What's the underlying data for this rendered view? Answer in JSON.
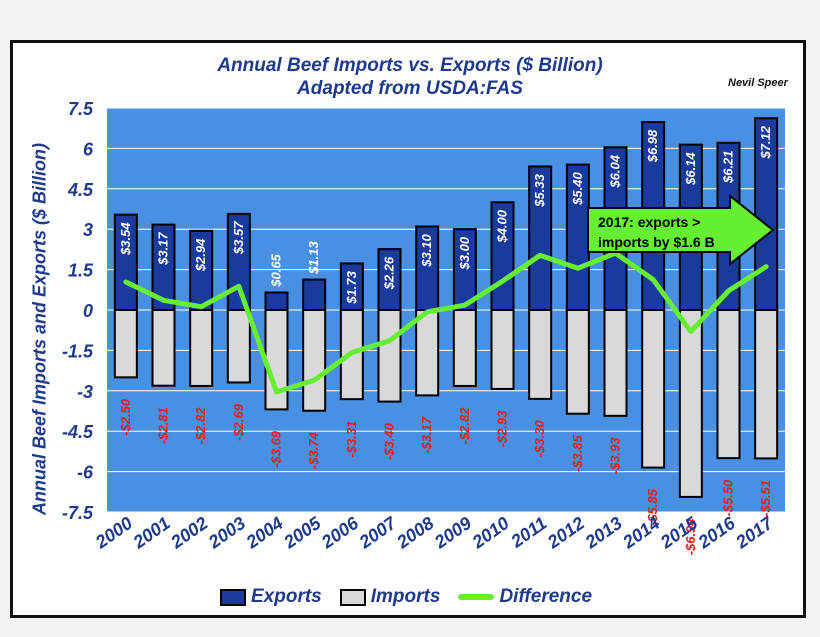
{
  "chart_data": {
    "type": "bar",
    "title": "Annual Beef Imports vs. Exports ($ Billion)",
    "subtitle": "Adapted from USDA:FAS",
    "credit": "Nevil Speer",
    "ylabel": "Annual Beef Imports and Exports ($ Billion)",
    "xlabel": "",
    "ylim": [
      -7.5,
      7.5
    ],
    "yticks": [
      7.5,
      6,
      4.5,
      3,
      1.5,
      0,
      -1.5,
      -3,
      -4.5,
      -6,
      -7.5
    ],
    "categories": [
      "2000",
      "2001",
      "2002",
      "2003",
      "2004",
      "2005",
      "2006",
      "2007",
      "2008",
      "2009",
      "2010",
      "2011",
      "2012",
      "2013",
      "2014",
      "2015",
      "2016",
      "2017"
    ],
    "series": [
      {
        "name": "Exports",
        "type": "bar",
        "color": "#1a3a9c",
        "values": [
          3.54,
          3.17,
          2.94,
          3.57,
          0.65,
          1.13,
          1.73,
          2.26,
          3.1,
          3.0,
          4.0,
          5.33,
          5.4,
          6.04,
          6.98,
          6.14,
          6.21,
          7.12
        ],
        "labels": [
          "$3.54",
          "$3.17",
          "$2.94",
          "$3.57",
          "$0.65",
          "$1.13",
          "$1.73",
          "$2.26",
          "$3.10",
          "$3.00",
          "$4.00",
          "$5.33",
          "$5.40",
          "$6.04",
          "$6.98",
          "$6.14",
          "$6.21",
          "$7.12"
        ]
      },
      {
        "name": "Imports",
        "type": "bar",
        "color": "#d9d9d9",
        "values": [
          -2.5,
          -2.81,
          -2.82,
          -2.69,
          -3.69,
          -3.74,
          -3.31,
          -3.4,
          -3.17,
          -2.82,
          -2.93,
          -3.3,
          -3.85,
          -3.93,
          -5.85,
          -6.94,
          -5.5,
          -5.51
        ],
        "labels": [
          "-$2.50",
          "-$2.81",
          "-$2.82",
          "-$2.69",
          "-$3.69",
          "-$3.74",
          "-$3.31",
          "-$3.40",
          "-$3.17",
          "-$2.82",
          "-$2.93",
          "-$3.30",
          "-$3.85",
          "-$3.93",
          "-$5.85",
          "-$6.94",
          "-$5.50",
          "-$5.51"
        ]
      },
      {
        "name": "Difference",
        "type": "line",
        "color": "#66ee33",
        "values": [
          1.04,
          0.36,
          0.12,
          0.88,
          -3.04,
          -2.61,
          -1.58,
          -1.14,
          -0.07,
          0.18,
          1.07,
          2.03,
          1.55,
          2.11,
          1.13,
          -0.8,
          0.71,
          1.61
        ]
      }
    ],
    "annotation": {
      "lines": [
        "2017:  exports >",
        "imports by $1.6 B"
      ],
      "color": "#66ee33"
    },
    "colors": {
      "plot_background": "#4a90e2",
      "title": "#1f3a8a",
      "import_label": "#e81c1c",
      "export_label": "#ffffff"
    },
    "grid": true,
    "legend_position": "bottom"
  }
}
